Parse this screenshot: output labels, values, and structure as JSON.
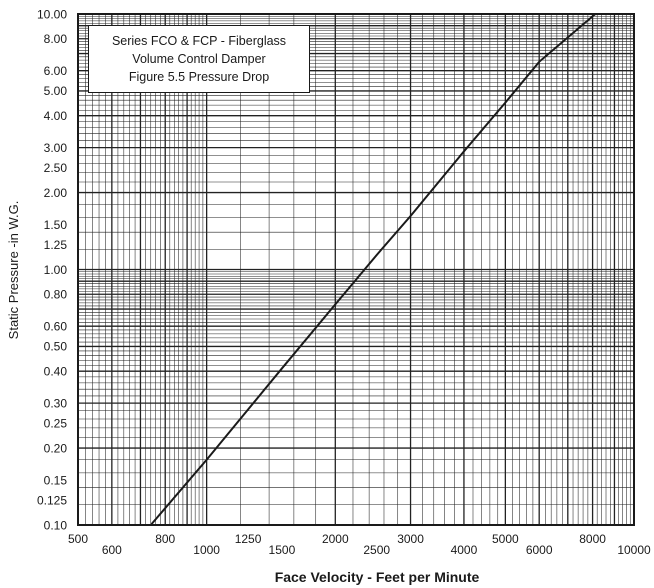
{
  "chart_data": {
    "type": "line",
    "title_lines": [
      "Series FCO & FCP - Fiberglass",
      "Volume Control Damper",
      "Figure 5.5 Pressure Drop"
    ],
    "xlabel": "Face Velocity - Feet per Minute",
    "ylabel": "Static Pressure -in W.G.",
    "x_scale": "log",
    "y_scale": "log",
    "xlim": [
      500,
      10000
    ],
    "ylim": [
      0.1,
      10
    ],
    "x_tick_labels": [
      "500",
      "600",
      "800",
      "1000",
      "1250",
      "1500",
      "2000",
      "2500",
      "3000",
      "4000",
      "5000",
      "6000",
      "8000",
      "10000"
    ],
    "y_tick_labels": [
      "10.00",
      "8.00",
      "6.00",
      "5.00",
      "4.00",
      "3.00",
      "2.50",
      "2.00",
      "1.50",
      "1.25",
      "1.00",
      "0.80",
      "0.60",
      "0.50",
      "0.40",
      "0.30",
      "0.25",
      "0.20",
      "0.15",
      "0.125",
      "0.10"
    ],
    "grid": true,
    "legend_position": "top-left",
    "series": [
      {
        "x": [
          740,
          1000,
          1500,
          2000,
          2500,
          3000,
          4000,
          5000,
          6000,
          8120
        ],
        "y": [
          0.1,
          0.18,
          0.41,
          0.73,
          1.14,
          1.62,
          2.9,
          4.5,
          6.5,
          10.0
        ]
      }
    ],
    "colors": {
      "line": "#1a1a1a",
      "grid": "#222222",
      "background": "#ffffff"
    }
  }
}
